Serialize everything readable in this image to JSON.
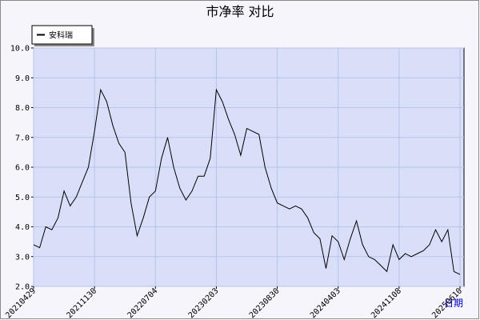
{
  "chart_data": {
    "type": "line",
    "title": "市净率  对比",
    "x_label": "日期",
    "categories": [
      "20210429",
      null,
      null,
      null,
      null,
      null,
      null,
      null,
      null,
      null,
      "20211130",
      null,
      null,
      null,
      null,
      null,
      null,
      null,
      null,
      null,
      "20220704",
      null,
      null,
      null,
      null,
      null,
      null,
      null,
      null,
      null,
      "20230203",
      null,
      null,
      null,
      null,
      null,
      null,
      null,
      null,
      null,
      "20230830",
      null,
      null,
      null,
      null,
      null,
      null,
      null,
      null,
      null,
      "20240403",
      null,
      null,
      null,
      null,
      null,
      null,
      null,
      null,
      null,
      "20241108",
      null,
      null,
      null,
      null,
      null,
      null,
      null,
      null,
      null,
      "20250610"
    ],
    "series": [
      {
        "name": "安科瑞",
        "color": "#000000",
        "values": [
          3.4,
          3.3,
          4.0,
          3.9,
          4.3,
          5.2,
          4.7,
          5.0,
          5.5,
          6.0,
          7.2,
          8.6,
          8.2,
          7.4,
          6.8,
          6.5,
          4.8,
          3.7,
          4.3,
          5.0,
          5.2,
          6.3,
          7.0,
          6.0,
          5.3,
          4.9,
          5.2,
          5.7,
          5.7,
          6.3,
          8.6,
          8.2,
          7.6,
          7.1,
          6.4,
          7.3,
          7.2,
          7.1,
          6.0,
          5.3,
          4.8,
          4.7,
          4.6,
          4.7,
          4.6,
          4.3,
          3.8,
          3.6,
          2.6,
          3.7,
          3.5,
          2.9,
          3.6,
          4.2,
          3.4,
          3.0,
          2.9,
          2.7,
          2.5,
          3.4,
          2.9,
          3.1,
          3.0,
          3.1,
          3.2,
          3.4,
          3.9,
          3.5,
          3.9,
          2.5,
          2.4
        ]
      }
    ],
    "ylim": [
      2,
      10
    ],
    "yticks": [
      {
        "value": 2,
        "label": "2.0"
      },
      {
        "value": 3,
        "label": "3.0"
      },
      {
        "value": 4,
        "label": "4.0"
      },
      {
        "value": 5,
        "label": "5.0"
      },
      {
        "value": 6,
        "label": "6.0"
      },
      {
        "value": 7,
        "label": "7.0"
      },
      {
        "value": 8,
        "label": "8.0"
      },
      {
        "value": 9,
        "label": "9.0"
      },
      {
        "value": 10,
        "label": "10.0"
      }
    ],
    "grid": true,
    "legend": "top-left"
  }
}
